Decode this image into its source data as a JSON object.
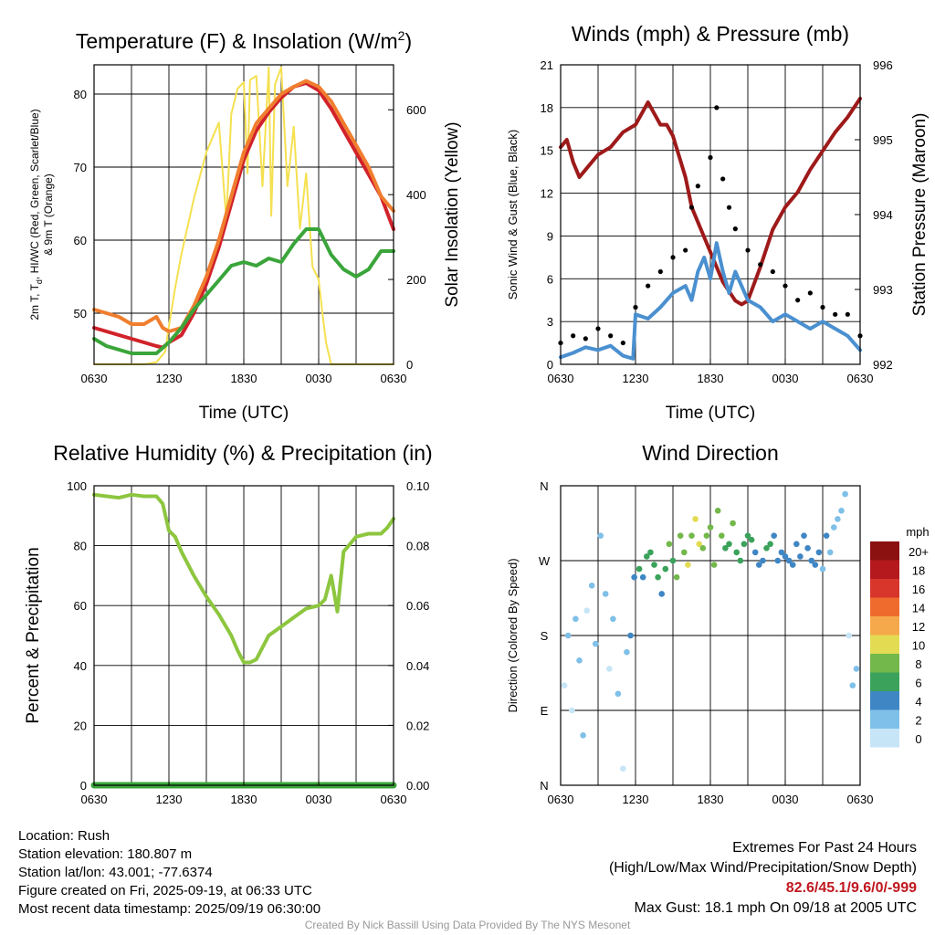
{
  "panels": {
    "temp": {
      "title_main": "Temperature (F) & Insolation (W/m",
      "title_sup": "2",
      "title_end": ")",
      "xlabel": "Time (UTC)",
      "ylabel_left_line1": "2m T, T",
      "ylabel_left_sub": "d",
      "ylabel_left_line1_end": ", HI/WC (Red, Green, Scarlet/Blue)",
      "ylabel_left_line2": "& 9m T (Orange)",
      "ylabel_right": "Solar Insolation (Yellow)"
    },
    "winds": {
      "title": "Winds (mph) & Pressure (mb)",
      "xlabel": "Time (UTC)",
      "ylabel_left": "Sonic Wind & Gust (Blue, Black)",
      "ylabel_right": "Station Pressure (Maroon)"
    },
    "rh": {
      "title": "Relative Humidity (%) & Precipitation (in)",
      "ylabel_left": "Percent & Precipitation"
    },
    "wdir": {
      "title": "Wind Direction",
      "ylabel_left": "Direction (Colored By Speed)",
      "legend_title": "mph"
    }
  },
  "chart_data": [
    {
      "type": "line",
      "panel": "temp",
      "x_ticks": [
        "0630",
        "1230",
        "1830",
        "0030",
        "0630"
      ],
      "x_hours_since_0630": [
        0,
        3,
        6,
        9,
        12,
        15,
        18,
        21,
        24
      ],
      "ylim_left": [
        43,
        84
      ],
      "yticks_left": [
        "50",
        "60",
        "70",
        "80"
      ],
      "ylim_right": [
        0,
        706
      ],
      "yticks_right": [
        "0",
        "200",
        "400",
        "600"
      ],
      "series": [
        {
          "name": "2m T",
          "color": "#d1222a",
          "x": [
            0,
            1,
            2,
            3,
            4,
            5,
            5.5,
            6,
            7,
            8,
            9,
            10,
            11,
            12,
            13,
            14,
            15,
            16,
            17,
            18,
            19,
            20,
            21,
            22,
            23,
            24
          ],
          "y": [
            48,
            47.5,
            47,
            46.5,
            46,
            45.5,
            45.3,
            46,
            47,
            50,
            54,
            59,
            65,
            71,
            75,
            77.5,
            79.5,
            81,
            81.5,
            80.5,
            78,
            75,
            72,
            69,
            66,
            61.5
          ]
        },
        {
          "name": "9m T",
          "color": "#f07e2e",
          "x": [
            0,
            1,
            2,
            3,
            4,
            5,
            5.5,
            6,
            7,
            8,
            9,
            10,
            11,
            12,
            13,
            14,
            15,
            16,
            17,
            18,
            19,
            20,
            21,
            22,
            23,
            24
          ],
          "y": [
            50.5,
            50,
            49.5,
            48.5,
            48.5,
            49.5,
            48,
            47.5,
            48,
            51,
            55,
            60,
            66,
            72,
            76,
            78,
            80,
            81,
            81.8,
            81,
            79,
            76,
            73,
            70,
            66,
            64
          ]
        },
        {
          "name": "Td",
          "color": "#3aa53a",
          "x": [
            0,
            1,
            2,
            3,
            4,
            5,
            6,
            7,
            8,
            9,
            10,
            11,
            12,
            13,
            14,
            15,
            16,
            17,
            18,
            19,
            20,
            21,
            22,
            23,
            24
          ],
          "y": [
            46.5,
            45.5,
            45,
            44.5,
            44.5,
            44.5,
            46,
            48,
            50.5,
            52.5,
            54.5,
            56.5,
            57,
            56.5,
            57.5,
            57,
            59.5,
            61.5,
            61.5,
            58,
            56,
            55,
            56,
            58.5,
            58.5
          ]
        },
        {
          "name": "Insolation",
          "color": "#f5e050",
          "axis": "right",
          "x": [
            0,
            3,
            4,
            5,
            5.7,
            6,
            6.5,
            7,
            8,
            9,
            10,
            10.6,
            11,
            11.5,
            12,
            12.3,
            12.5,
            13,
            13.5,
            14,
            14.2,
            14.5,
            15,
            15.5,
            16,
            16.5,
            17,
            17.5,
            18,
            18.3,
            18.6,
            19,
            24
          ],
          "y": [
            0,
            0,
            0,
            5,
            30,
            90,
            180,
            260,
            390,
            500,
            570,
            340,
            590,
            650,
            665,
            450,
            670,
            680,
            420,
            700,
            350,
            660,
            700,
            420,
            560,
            320,
            450,
            230,
            200,
            120,
            50,
            0,
            0
          ]
        }
      ]
    },
    {
      "type": "line",
      "panel": "winds",
      "x_ticks": [
        "0630",
        "1230",
        "1830",
        "0030",
        "0630"
      ],
      "ylim_left": [
        0,
        21
      ],
      "yticks_left": [
        "0",
        "3",
        "6",
        "9",
        "12",
        "15",
        "18",
        "21"
      ],
      "ylim_right": [
        992,
        996
      ],
      "yticks_right": [
        "992",
        "993",
        "994",
        "995",
        "996"
      ],
      "series": [
        {
          "name": "Sonic Wind",
          "color": "#4a90d0",
          "x": [
            0,
            1,
            2,
            3,
            4,
            5,
            5.8,
            6,
            7,
            8,
            9,
            10,
            10.5,
            11,
            11.5,
            12,
            12.5,
            13,
            13.5,
            14,
            15,
            16,
            17,
            18,
            19,
            20,
            21,
            22,
            23,
            24
          ],
          "y": [
            0.5,
            0.8,
            1.2,
            1.0,
            1.3,
            0.6,
            0.4,
            3.5,
            3.2,
            4.0,
            5.0,
            5.5,
            4.5,
            6.5,
            7.5,
            6.0,
            8.5,
            6.5,
            5.0,
            6.5,
            4.5,
            4.0,
            3.0,
            3.5,
            3.0,
            2.5,
            3.0,
            2.5,
            2.0,
            1.0
          ]
        },
        {
          "name": "Gust",
          "color": "#000000",
          "x": [
            0,
            1,
            2,
            3,
            4,
            5,
            6,
            7,
            8,
            9,
            10,
            10.5,
            11,
            12,
            12.5,
            13,
            13.5,
            14,
            15,
            16,
            17,
            18,
            19,
            20,
            21,
            22,
            23,
            24
          ],
          "y": [
            1.5,
            2.0,
            1.8,
            2.5,
            2.0,
            1.5,
            4.0,
            5.5,
            6.5,
            7.5,
            8.0,
            11.0,
            12.5,
            14.5,
            18.0,
            13.0,
            11.0,
            9.5,
            8.0,
            7.0,
            6.5,
            5.5,
            4.5,
            5.0,
            4.0,
            3.5,
            3.5,
            2.0
          ]
        },
        {
          "name": "Station Pressure",
          "color": "#9e1a1a",
          "axis": "right",
          "x": [
            0,
            0.5,
            1,
            1.5,
            2,
            3,
            4,
            5,
            6,
            7,
            7.5,
            8,
            8.5,
            9,
            10,
            10.5,
            11,
            12,
            13,
            14,
            14.5,
            15,
            16,
            17,
            18,
            19,
            20,
            21,
            22,
            23,
            24
          ],
          "y": [
            994.9,
            995.0,
            994.7,
            994.5,
            994.6,
            994.8,
            994.9,
            995.1,
            995.2,
            995.5,
            995.35,
            995.2,
            995.2,
            995.05,
            994.5,
            994.1,
            993.9,
            993.5,
            993.1,
            992.85,
            992.8,
            992.85,
            993.3,
            993.8,
            994.1,
            994.3,
            994.6,
            994.85,
            995.1,
            995.3,
            995.55
          ]
        }
      ]
    },
    {
      "type": "line",
      "panel": "rh",
      "x_ticks": [
        "0630",
        "1230",
        "1830",
        "0030",
        "0630"
      ],
      "ylim_left": [
        0,
        100
      ],
      "yticks_left": [
        "0",
        "20",
        "40",
        "60",
        "80",
        "100"
      ],
      "ylim_right": [
        0,
        0.1
      ],
      "yticks_right": [
        "0.00",
        "0.02",
        "0.04",
        "0.06",
        "0.08",
        "0.10"
      ],
      "series": [
        {
          "name": "Relative Humidity",
          "color": "#8dc63f",
          "x": [
            0,
            1,
            2,
            3,
            4,
            5,
            5.5,
            6,
            6.5,
            7,
            8,
            9,
            10,
            11,
            11.5,
            12,
            12.5,
            13,
            14,
            15,
            16,
            17,
            18,
            18.5,
            19,
            19.5,
            20,
            21,
            22,
            23,
            23.5,
            24
          ],
          "y": [
            97,
            96.5,
            96,
            97,
            96.5,
            96.5,
            94,
            85,
            83,
            78,
            70,
            63,
            57,
            50,
            45,
            41,
            41,
            42,
            50,
            53,
            56,
            59,
            60,
            62,
            70,
            58,
            78,
            83,
            84,
            84,
            86,
            89
          ]
        },
        {
          "name": "Precipitation",
          "color": "#3aa53a",
          "axis": "right",
          "x": [
            0,
            24
          ],
          "y": [
            0,
            0
          ]
        }
      ]
    },
    {
      "type": "scatter",
      "panel": "wdir",
      "x_ticks": [
        "0630",
        "1230",
        "1830",
        "0030",
        "0630"
      ],
      "y_ticks": [
        "N",
        "E",
        "S",
        "W",
        "N"
      ],
      "ylim": [
        0,
        360
      ],
      "colorbar_labels": [
        "0",
        "2",
        "4",
        "6",
        "8",
        "10",
        "12",
        "14",
        "16",
        "18",
        "20+"
      ],
      "colorbar_colors": [
        "#c6e6f7",
        "#7fc0e8",
        "#3f86c4",
        "#3aa25a",
        "#73b84a",
        "#e3dc53",
        "#f6a94a",
        "#ef6b2d",
        "#d8352b",
        "#b5191e",
        "#8b1111"
      ],
      "series": [
        {
          "name": "Direction",
          "x_hours": [
            0.3,
            0.6,
            0.9,
            1.2,
            1.5,
            1.8,
            2.1,
            2.5,
            2.8,
            3.2,
            3.6,
            3.9,
            4.2,
            4.6,
            5.0,
            5.3,
            5.6,
            5.9,
            6.3,
            6.6,
            6.9,
            7.2,
            7.5,
            7.8,
            8.1,
            8.4,
            8.7,
            9.0,
            9.3,
            9.6,
            9.9,
            10.2,
            10.5,
            10.8,
            11.1,
            11.4,
            11.7,
            12.0,
            12.3,
            12.6,
            12.9,
            13.2,
            13.5,
            13.8,
            14.1,
            14.4,
            14.7,
            15.0,
            15.3,
            15.6,
            15.9,
            16.2,
            16.5,
            16.8,
            17.1,
            17.4,
            17.7,
            18.0,
            18.3,
            18.6,
            18.9,
            19.2,
            19.5,
            19.8,
            20.1,
            20.4,
            20.7,
            21.0,
            21.3,
            21.6,
            21.9,
            22.2,
            22.5,
            22.8,
            23.1,
            23.4,
            23.7
          ],
          "directions": [
            120,
            180,
            90,
            200,
            150,
            60,
            210,
            240,
            170,
            300,
            230,
            140,
            200,
            110,
            20,
            160,
            180,
            250,
            260,
            250,
            275,
            280,
            265,
            250,
            230,
            260,
            290,
            270,
            250,
            300,
            280,
            265,
            300,
            320,
            290,
            285,
            300,
            310,
            265,
            330,
            300,
            285,
            290,
            315,
            280,
            270,
            290,
            300,
            295,
            280,
            265,
            270,
            285,
            290,
            300,
            270,
            280,
            275,
            270,
            265,
            290,
            275,
            300,
            285,
            270,
            265,
            280,
            260,
            300,
            280,
            310,
            320,
            330,
            350,
            180,
            120,
            140
          ],
          "speeds": [
            0.5,
            1,
            0.5,
            1,
            1.5,
            1,
            0.5,
            1,
            1,
            1.5,
            1,
            0.5,
            1,
            1,
            0.5,
            1,
            2,
            3,
            4,
            3.5,
            4,
            5,
            4.5,
            4,
            3.5,
            5,
            6,
            5.5,
            6,
            7,
            6.5,
            8,
            7.5,
            8.5,
            9,
            7,
            6.5,
            6,
            6,
            7,
            6.5,
            5.5,
            5,
            6,
            4.5,
            4,
            4,
            5,
            4,
            3.5,
            3,
            3.5,
            4,
            4.5,
            3,
            3.5,
            3,
            3.5,
            3,
            3,
            3.5,
            2.5,
            3,
            2.5,
            2,
            2.5,
            2,
            1.5,
            2,
            1.5,
            1.5,
            1.5,
            1,
            1,
            0.5,
            1,
            1
          ]
        }
      ]
    }
  ],
  "footer": {
    "location": "Location: Rush",
    "elevation": "Station elevation: 180.807 m",
    "latlon": "Station lat/lon: 43.001; -77.6374",
    "created": "Figure created on Fri, 2025-09-19, at 06:33 UTC",
    "recent": "Most recent data timestamp: 2025/09/19 06:30:00",
    "extremes_title": "Extremes For Past 24 Hours",
    "extremes_sub": "(High/Low/Max Wind/Precipitation/Snow Depth)",
    "extremes_values": "82.6/45.1/9.6/0/-999",
    "max_gust": "Max Gust: 18.1 mph On 09/18 at 2005 UTC",
    "credit": "Created By Nick Bassill Using Data Provided By The NYS Mesonet"
  },
  "colors": {
    "extremes_red": "#c0181f",
    "credit_gray": "#999999"
  }
}
